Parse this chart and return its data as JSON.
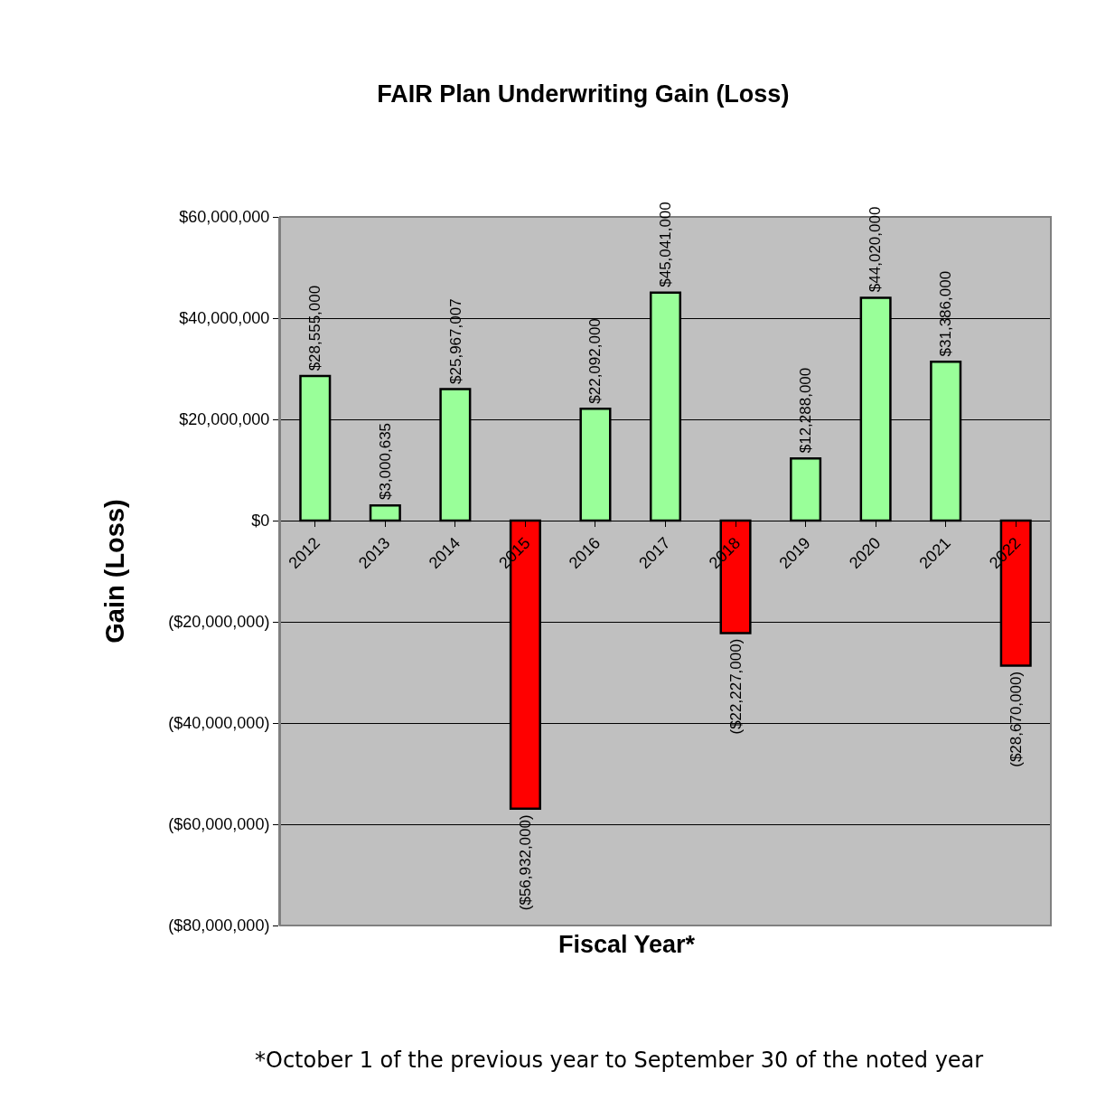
{
  "chart_data": {
    "type": "bar",
    "title": "FAIR Plan Underwriting Gain (Loss)",
    "xlabel": "Fiscal Year*",
    "ylabel": "Gain (Loss)",
    "categories": [
      "2012",
      "2013",
      "2014",
      "2015",
      "2016",
      "2017",
      "2018",
      "2019",
      "2020",
      "2021",
      "2022"
    ],
    "values": [
      28555000,
      3000635,
      25967007,
      -56932000,
      22092000,
      45041000,
      -22227000,
      12288000,
      44020000,
      31386000,
      -28670000
    ],
    "colors": [
      "#99ff99",
      "#99ff99",
      "#99ff99",
      "#ff0000",
      "#99ff99",
      "#99ff99",
      "#ff0000",
      "#99ff99",
      "#99ff99",
      "#99ff99",
      "#ff0000"
    ],
    "value_labels": [
      "$28,555,000",
      "$3,000,635",
      "$25,967,007",
      "($56,932,000)",
      "$22,092,000",
      "$45,041,000",
      "($22,227,000)",
      "$12,288,000",
      "$44,020,000",
      "$31,386,000",
      "($28,670,000)"
    ],
    "ylim": [
      -80000000,
      60000000
    ],
    "yticks": [
      {
        "value": -80000000,
        "label": "($80,000,000)"
      },
      {
        "value": -60000000,
        "label": "($60,000,000)"
      },
      {
        "value": -40000000,
        "label": "($40,000,000)"
      },
      {
        "value": -20000000,
        "label": "($20,000,000)"
      },
      {
        "value": 0,
        "label": "$0"
      },
      {
        "value": 20000000,
        "label": "$20,000,000"
      },
      {
        "value": 40000000,
        "label": "$40,000,000"
      },
      {
        "value": 60000000,
        "label": "$60,000,000"
      }
    ],
    "grid": "y",
    "legend": false,
    "annotations": [
      "*October 1 of the previous year to September 30 of the noted year"
    ]
  }
}
